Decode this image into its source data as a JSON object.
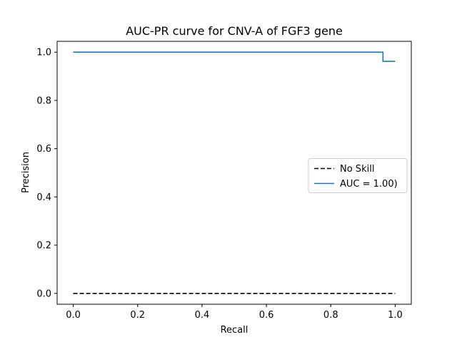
{
  "chart_data": {
    "type": "line",
    "title": "AUC-PR curve for CNV-A of FGF3 gene",
    "xlabel": "Recall",
    "ylabel": "Precision",
    "xlim": [
      -0.05,
      1.05
    ],
    "ylim": [
      -0.045,
      1.045
    ],
    "xticks": [
      0.0,
      0.2,
      0.4,
      0.6,
      0.8,
      1.0
    ],
    "xtick_labels": [
      "0.0",
      "0.2",
      "0.4",
      "0.6",
      "0.8",
      "1.0"
    ],
    "yticks": [
      0.0,
      0.2,
      0.4,
      0.6,
      0.8,
      1.0
    ],
    "ytick_labels": [
      "0.0",
      "0.2",
      "0.4",
      "0.6",
      "0.8",
      "1.0"
    ],
    "grid": false,
    "legend_position": "center-right",
    "series": [
      {
        "name": "No Skill",
        "style": "dashed",
        "color": "#000000",
        "x": [
          0.0,
          1.0
        ],
        "y": [
          0.0,
          0.0
        ]
      },
      {
        "name": "AUC = 1.00)",
        "style": "steps",
        "color": "#1f77b4",
        "x": [
          0.0,
          0.962,
          0.962,
          1.0
        ],
        "y": [
          1.0,
          1.0,
          0.962,
          0.962
        ]
      }
    ]
  }
}
